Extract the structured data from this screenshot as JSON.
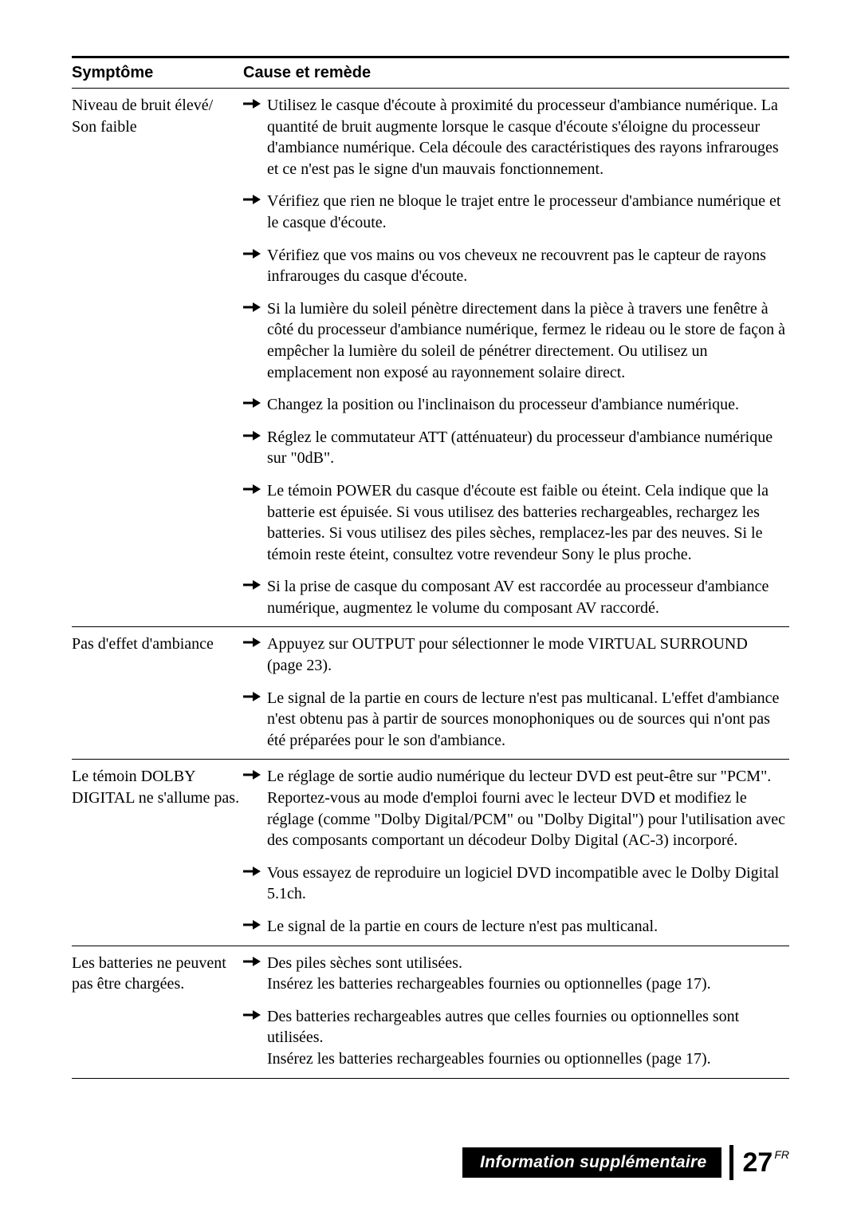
{
  "colors": {
    "text": "#000000",
    "background": "#ffffff",
    "rule": "#000000",
    "footer_bg": "#000000",
    "footer_text": "#ffffff"
  },
  "typography": {
    "body_family": "Book Antiqua / Palatino serif",
    "body_size_pt": 15,
    "header_family": "Arial / Helvetica sans-serif",
    "header_weight": "bold"
  },
  "table": {
    "headers": {
      "symptom": "Symptôme",
      "remedy": "Cause et remède"
    },
    "rows": [
      {
        "symptom": "Niveau de bruit élevé/\nSon faible",
        "remedies": [
          "Utilisez le casque d'écoute à proximité du processeur d'ambiance numérique. La quantité de bruit augmente lorsque le casque d'écoute s'éloigne du processeur d'ambiance numérique. Cela découle des caractéristiques des rayons infrarouges et ce n'est pas le signe d'un mauvais fonctionnement.",
          "Vérifiez que rien ne bloque le trajet entre le processeur d'ambiance numérique et le casque d'écoute.",
          "Vérifiez que vos mains ou vos cheveux ne recouvrent pas le capteur de rayons infrarouges du casque d'écoute.",
          "Si la lumière du soleil pénètre directement dans la pièce à travers une fenêtre à côté du processeur d'ambiance numérique, fermez le rideau ou le store de façon à empêcher la lumière du soleil de pénétrer directement. Ou utilisez un emplacement non exposé au rayonnement solaire direct.",
          "Changez la position ou l'inclinaison du processeur d'ambiance numérique.",
          "Réglez le commutateur ATT (atténuateur) du processeur d'ambiance numérique sur \"0dB\".",
          "Le témoin POWER du casque d'écoute est faible ou éteint. Cela indique que la batterie est épuisée. Si vous utilisez des batteries rechargeables, rechargez les batteries. Si vous utilisez des piles sèches, remplacez-les par des neuves. Si le témoin reste éteint, consultez votre revendeur Sony le plus proche.",
          "Si la prise de casque du composant AV est raccordée au processeur d'ambiance numérique, augmentez le volume du composant AV raccordé."
        ]
      },
      {
        "symptom": "Pas d'effet d'ambiance",
        "remedies": [
          "Appuyez sur OUTPUT pour sélectionner le mode VIRTUAL SURROUND (page 23).",
          "Le signal de la partie en cours de lecture n'est pas multicanal. L'effet d'ambiance n'est obtenu pas à partir de sources monophoniques ou de sources qui n'ont pas été préparées pour le son d'ambiance."
        ]
      },
      {
        "symptom": "Le témoin DOLBY DIGITAL ne s'allume pas.",
        "remedies": [
          "Le réglage de sortie audio numérique du lecteur DVD est peut-être sur \"PCM\".\nReportez-vous au mode d'emploi fourni avec le lecteur DVD et modifiez le réglage (comme \"Dolby Digital/PCM\" ou \"Dolby Digital\") pour l'utilisation avec des composants comportant un décodeur Dolby Digital (AC-3) incorporé.",
          "Vous essayez de reproduire un logiciel DVD incompatible avec le Dolby Digital 5.1ch.",
          "Le signal de la partie en cours de lecture n'est pas multicanal."
        ]
      },
      {
        "symptom": "Les batteries ne peuvent pas être chargées.",
        "remedies": [
          "Des piles sèches sont utilisées.\nInsérez les batteries rechargeables fournies ou optionnelles (page 17).",
          "Des batteries rechargeables autres que celles fournies ou optionnelles sont utilisées.\nInsérez les batteries rechargeables fournies ou optionnelles (page 17)."
        ]
      }
    ]
  },
  "footer": {
    "section": "Information supplémentaire",
    "page_number": "27",
    "lang": "FR"
  }
}
